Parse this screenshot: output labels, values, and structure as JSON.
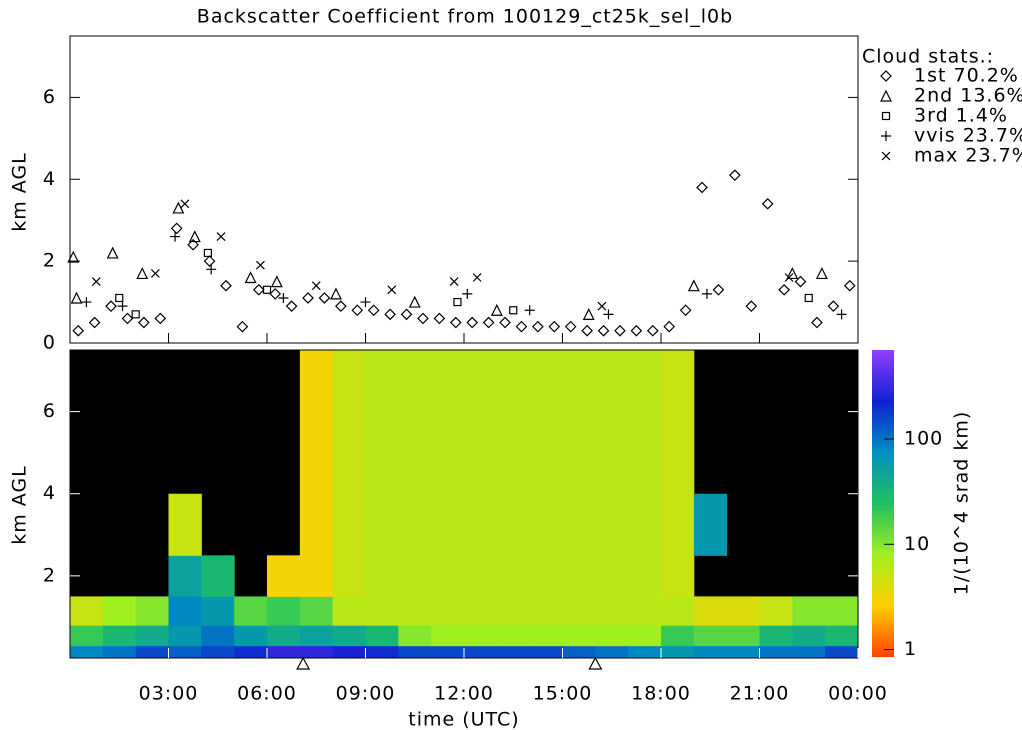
{
  "chart_data": [
    {
      "type": "scatter",
      "title": "Backscatter Coefficient from 100129_ct25k_sel_l0b",
      "ylabel": "km AGL",
      "legend_title": "Cloud stats.:",
      "legend": "upper right",
      "xlim": [
        0,
        24
      ],
      "ylim": [
        0,
        7.5
      ],
      "xticks": [
        3,
        6,
        9,
        12,
        15,
        18,
        21,
        24
      ],
      "yticks": [
        0,
        2,
        4,
        6
      ],
      "series": [
        {
          "name": "1st 70.2%",
          "marker": "diamond",
          "color": "#000000",
          "x": [
            0.25,
            0.75,
            1.25,
            1.75,
            2.25,
            2.75,
            3.25,
            3.75,
            4.25,
            4.75,
            5.25,
            5.75,
            6.25,
            6.75,
            7.25,
            7.75,
            8.25,
            8.75,
            9.25,
            9.75,
            10.25,
            10.75,
            11.25,
            11.75,
            12.25,
            12.75,
            13.25,
            13.75,
            14.25,
            14.75,
            15.25,
            15.75,
            16.25,
            16.75,
            17.25,
            17.75,
            18.25,
            18.75,
            19.25,
            19.75,
            20.25,
            20.75,
            21.25,
            21.75,
            22.25,
            22.75,
            23.25,
            23.75
          ],
          "values": [
            0.3,
            0.5,
            0.9,
            0.6,
            0.5,
            0.6,
            2.8,
            2.4,
            2.0,
            1.4,
            0.4,
            1.3,
            1.2,
            0.9,
            1.1,
            1.1,
            0.9,
            0.8,
            0.8,
            0.7,
            0.7,
            0.6,
            0.6,
            0.5,
            0.5,
            0.5,
            0.5,
            0.4,
            0.4,
            0.4,
            0.4,
            0.3,
            0.3,
            0.3,
            0.3,
            0.3,
            0.4,
            0.8,
            3.8,
            1.3,
            4.1,
            0.9,
            3.4,
            1.3,
            1.5,
            0.5,
            0.9,
            1.4
          ]
        },
        {
          "name": "2nd 13.6%",
          "marker": "triangle",
          "color": "#000000",
          "x": [
            0.1,
            0.2,
            1.3,
            2.2,
            3.3,
            3.8,
            5.5,
            6.3,
            8.1,
            10.5,
            13.0,
            15.8,
            19.0,
            22.0,
            22.9
          ],
          "values": [
            2.1,
            1.1,
            2.2,
            1.7,
            3.3,
            2.6,
            1.6,
            1.5,
            1.2,
            1.0,
            0.8,
            0.7,
            1.4,
            1.7,
            1.7
          ]
        },
        {
          "name": "3rd  1.4%",
          "marker": "square",
          "color": "#000000",
          "x": [
            1.5,
            2.0,
            4.2,
            6.0,
            11.8,
            13.5,
            22.5
          ],
          "values": [
            1.1,
            0.7,
            2.2,
            1.3,
            1.0,
            0.8,
            1.1
          ]
        },
        {
          "name": "vvis 23.7%",
          "marker": "plus",
          "color": "#000000",
          "x": [
            0.5,
            1.6,
            3.2,
            4.3,
            6.5,
            9.0,
            12.1,
            14.0,
            16.4,
            19.4,
            23.5
          ],
          "values": [
            1.0,
            0.9,
            2.6,
            1.8,
            1.1,
            1.0,
            1.2,
            0.8,
            0.7,
            1.2,
            0.7
          ]
        },
        {
          "name": "max 23.7%",
          "marker": "cross",
          "color": "#000000",
          "x": [
            0.8,
            2.6,
            3.5,
            4.6,
            5.8,
            7.5,
            9.8,
            11.7,
            12.4,
            16.2,
            21.9
          ],
          "values": [
            1.5,
            1.7,
            3.4,
            2.6,
            1.9,
            1.4,
            1.3,
            1.5,
            1.6,
            0.9,
            1.6
          ]
        }
      ]
    },
    {
      "type": "heatmap",
      "ylabel": "km AGL",
      "xlabel": "time (UTC)",
      "xlim": [
        0,
        24
      ],
      "ylim": [
        0,
        7.5
      ],
      "xticks": [
        {
          "value": 3,
          "label": "03:00"
        },
        {
          "value": 6,
          "label": "06:00"
        },
        {
          "value": 9,
          "label": "09:00"
        },
        {
          "value": 12,
          "label": "12:00"
        },
        {
          "value": 15,
          "label": "15:00"
        },
        {
          "value": 18,
          "label": "18:00"
        },
        {
          "value": 21,
          "label": "21:00"
        },
        {
          "value": 24,
          "label": "00:00"
        }
      ],
      "yticks": [
        2,
        4,
        6
      ],
      "background": "#000000",
      "y_edges": [
        0,
        0.3,
        0.8,
        1.5,
        2.5,
        4,
        7.5
      ],
      "z": [
        [
          80,
          20,
          5,
          null,
          null,
          null
        ],
        [
          100,
          30,
          8,
          null,
          null,
          null
        ],
        [
          150,
          40,
          10,
          null,
          null,
          null
        ],
        [
          120,
          60,
          80,
          50,
          5,
          null
        ],
        [
          150,
          100,
          60,
          30,
          null,
          null
        ],
        [
          200,
          60,
          15,
          null,
          null,
          null
        ],
        [
          300,
          40,
          20,
          3,
          null,
          null
        ],
        [
          300,
          50,
          15,
          3,
          3,
          3
        ],
        [
          250,
          40,
          6,
          5,
          5,
          5
        ],
        [
          200,
          30,
          6,
          6,
          6,
          6
        ],
        [
          150,
          10,
          6,
          6,
          6,
          6
        ],
        [
          150,
          8,
          6,
          6,
          6,
          6
        ],
        [
          150,
          8,
          6,
          6,
          6,
          6
        ],
        [
          150,
          8,
          6,
          6,
          6,
          6
        ],
        [
          150,
          8,
          6,
          6,
          6,
          6
        ],
        [
          120,
          8,
          6,
          6,
          6,
          6
        ],
        [
          100,
          8,
          6,
          6,
          6,
          6
        ],
        [
          80,
          8,
          6,
          6,
          6,
          6
        ],
        [
          60,
          20,
          6,
          5,
          5,
          5
        ],
        [
          80,
          15,
          4,
          null,
          60,
          null
        ],
        [
          80,
          15,
          4,
          null,
          null,
          null
        ],
        [
          100,
          30,
          5,
          null,
          null,
          null
        ],
        [
          100,
          40,
          10,
          null,
          null,
          null
        ],
        [
          150,
          30,
          10,
          null,
          null,
          null
        ]
      ],
      "flags_x": [
        7.1,
        16.0
      ],
      "colorbar": {
        "label": "1/(10^4 srad km)",
        "scale": "log",
        "lim": [
          0.85,
          700
        ],
        "ticks": [
          1,
          10,
          100
        ],
        "colors": [
          "#ff4000",
          "#ffd000",
          "#a0f020",
          "#20c060",
          "#0090c0",
          "#1020d0",
          "#9040ff"
        ]
      }
    }
  ]
}
